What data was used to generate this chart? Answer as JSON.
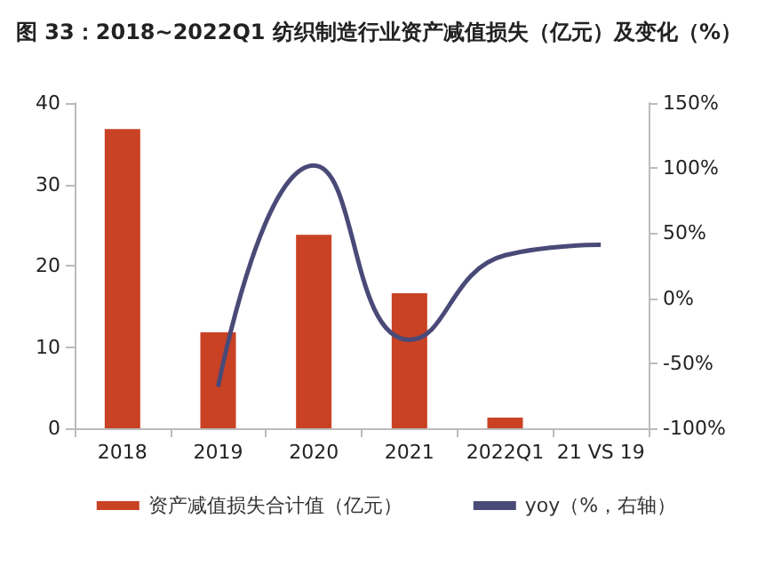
{
  "chart_data": {
    "type": "bar",
    "title": "图 33：2018~2022Q1 纺织制造行业资产减值损失（亿元）及变化（%）",
    "categories": [
      "2018",
      "2019",
      "2020",
      "2021",
      "2022Q1",
      "21 VS 19"
    ],
    "series": [
      {
        "name": "资产减值损失合计值（亿元）",
        "color": "#c94224",
        "values": [
          36.8,
          11.8,
          23.8,
          16.6,
          1.3,
          null
        ]
      },
      {
        "name": "yoy（%，右轴）",
        "type": "line",
        "axis": "y2",
        "color": "#4a4a78",
        "values": [
          null,
          -68,
          102,
          -32,
          33,
          41
        ]
      }
    ],
    "ylim": [
      0,
      40
    ],
    "yticks": [
      0,
      10,
      20,
      30,
      40
    ],
    "y2lim": [
      -100,
      150
    ],
    "y2ticks": [
      {
        "value": -100,
        "label": "-100%"
      },
      {
        "value": -50,
        "label": "-50%"
      },
      {
        "value": 0,
        "label": "0%"
      },
      {
        "value": 50,
        "label": "50%"
      },
      {
        "value": 100,
        "label": "100%"
      },
      {
        "value": 150,
        "label": "150%"
      }
    ],
    "grid": false,
    "legend": "bottom",
    "marker": "none"
  }
}
